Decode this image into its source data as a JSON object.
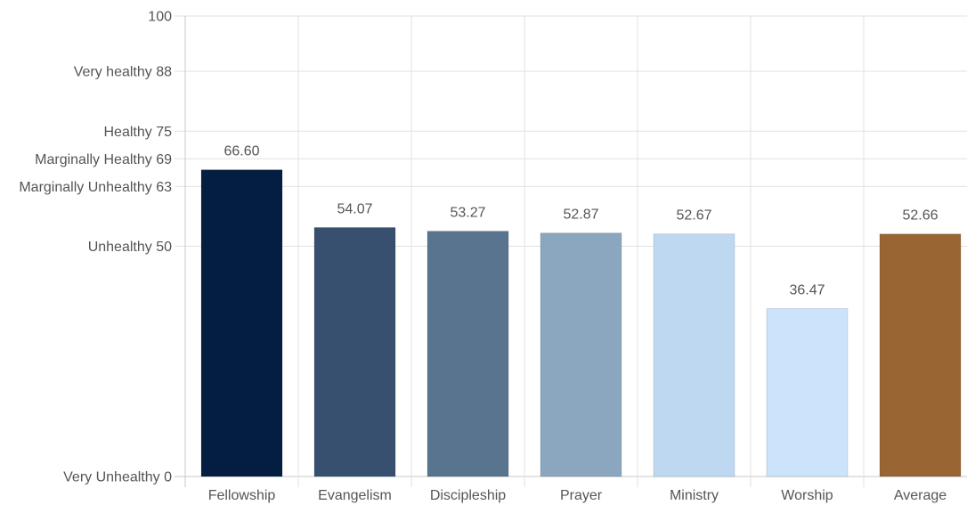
{
  "chart_data": {
    "type": "bar",
    "title": "",
    "xlabel": "",
    "ylabel": "",
    "categories": [
      "Fellowship",
      "Evangelism",
      "Discipleship",
      "Prayer",
      "Ministry",
      "Worship",
      "Average"
    ],
    "values": [
      66.6,
      54.07,
      53.27,
      52.87,
      52.67,
      36.47,
      52.66
    ],
    "value_labels": [
      "66.60",
      "54.07",
      "53.27",
      "52.87",
      "52.67",
      "36.47",
      "52.66"
    ],
    "bar_colors": [
      "#041e42",
      "#37506f",
      "#58748f",
      "#8ba7c0",
      "#bfd8f1",
      "#cbe4fb",
      "#986533"
    ],
    "ylim": [
      0,
      100
    ],
    "y_ticks": [
      {
        "value": 0,
        "label": "Very Unhealthy 0"
      },
      {
        "value": 50,
        "label": "Unhealthy 50"
      },
      {
        "value": 63,
        "label": "Marginally Unhealthy 63"
      },
      {
        "value": 69,
        "label": "Marginally Healthy 69"
      },
      {
        "value": 75,
        "label": "Healthy 75"
      },
      {
        "value": 88,
        "label": "Very healthy 88"
      },
      {
        "value": 100,
        "label": "100"
      }
    ],
    "grid": true,
    "legend": "none",
    "colors": {
      "grid": "#e1e1e1",
      "axis": "#c8c8c8",
      "text": "#555555"
    }
  }
}
